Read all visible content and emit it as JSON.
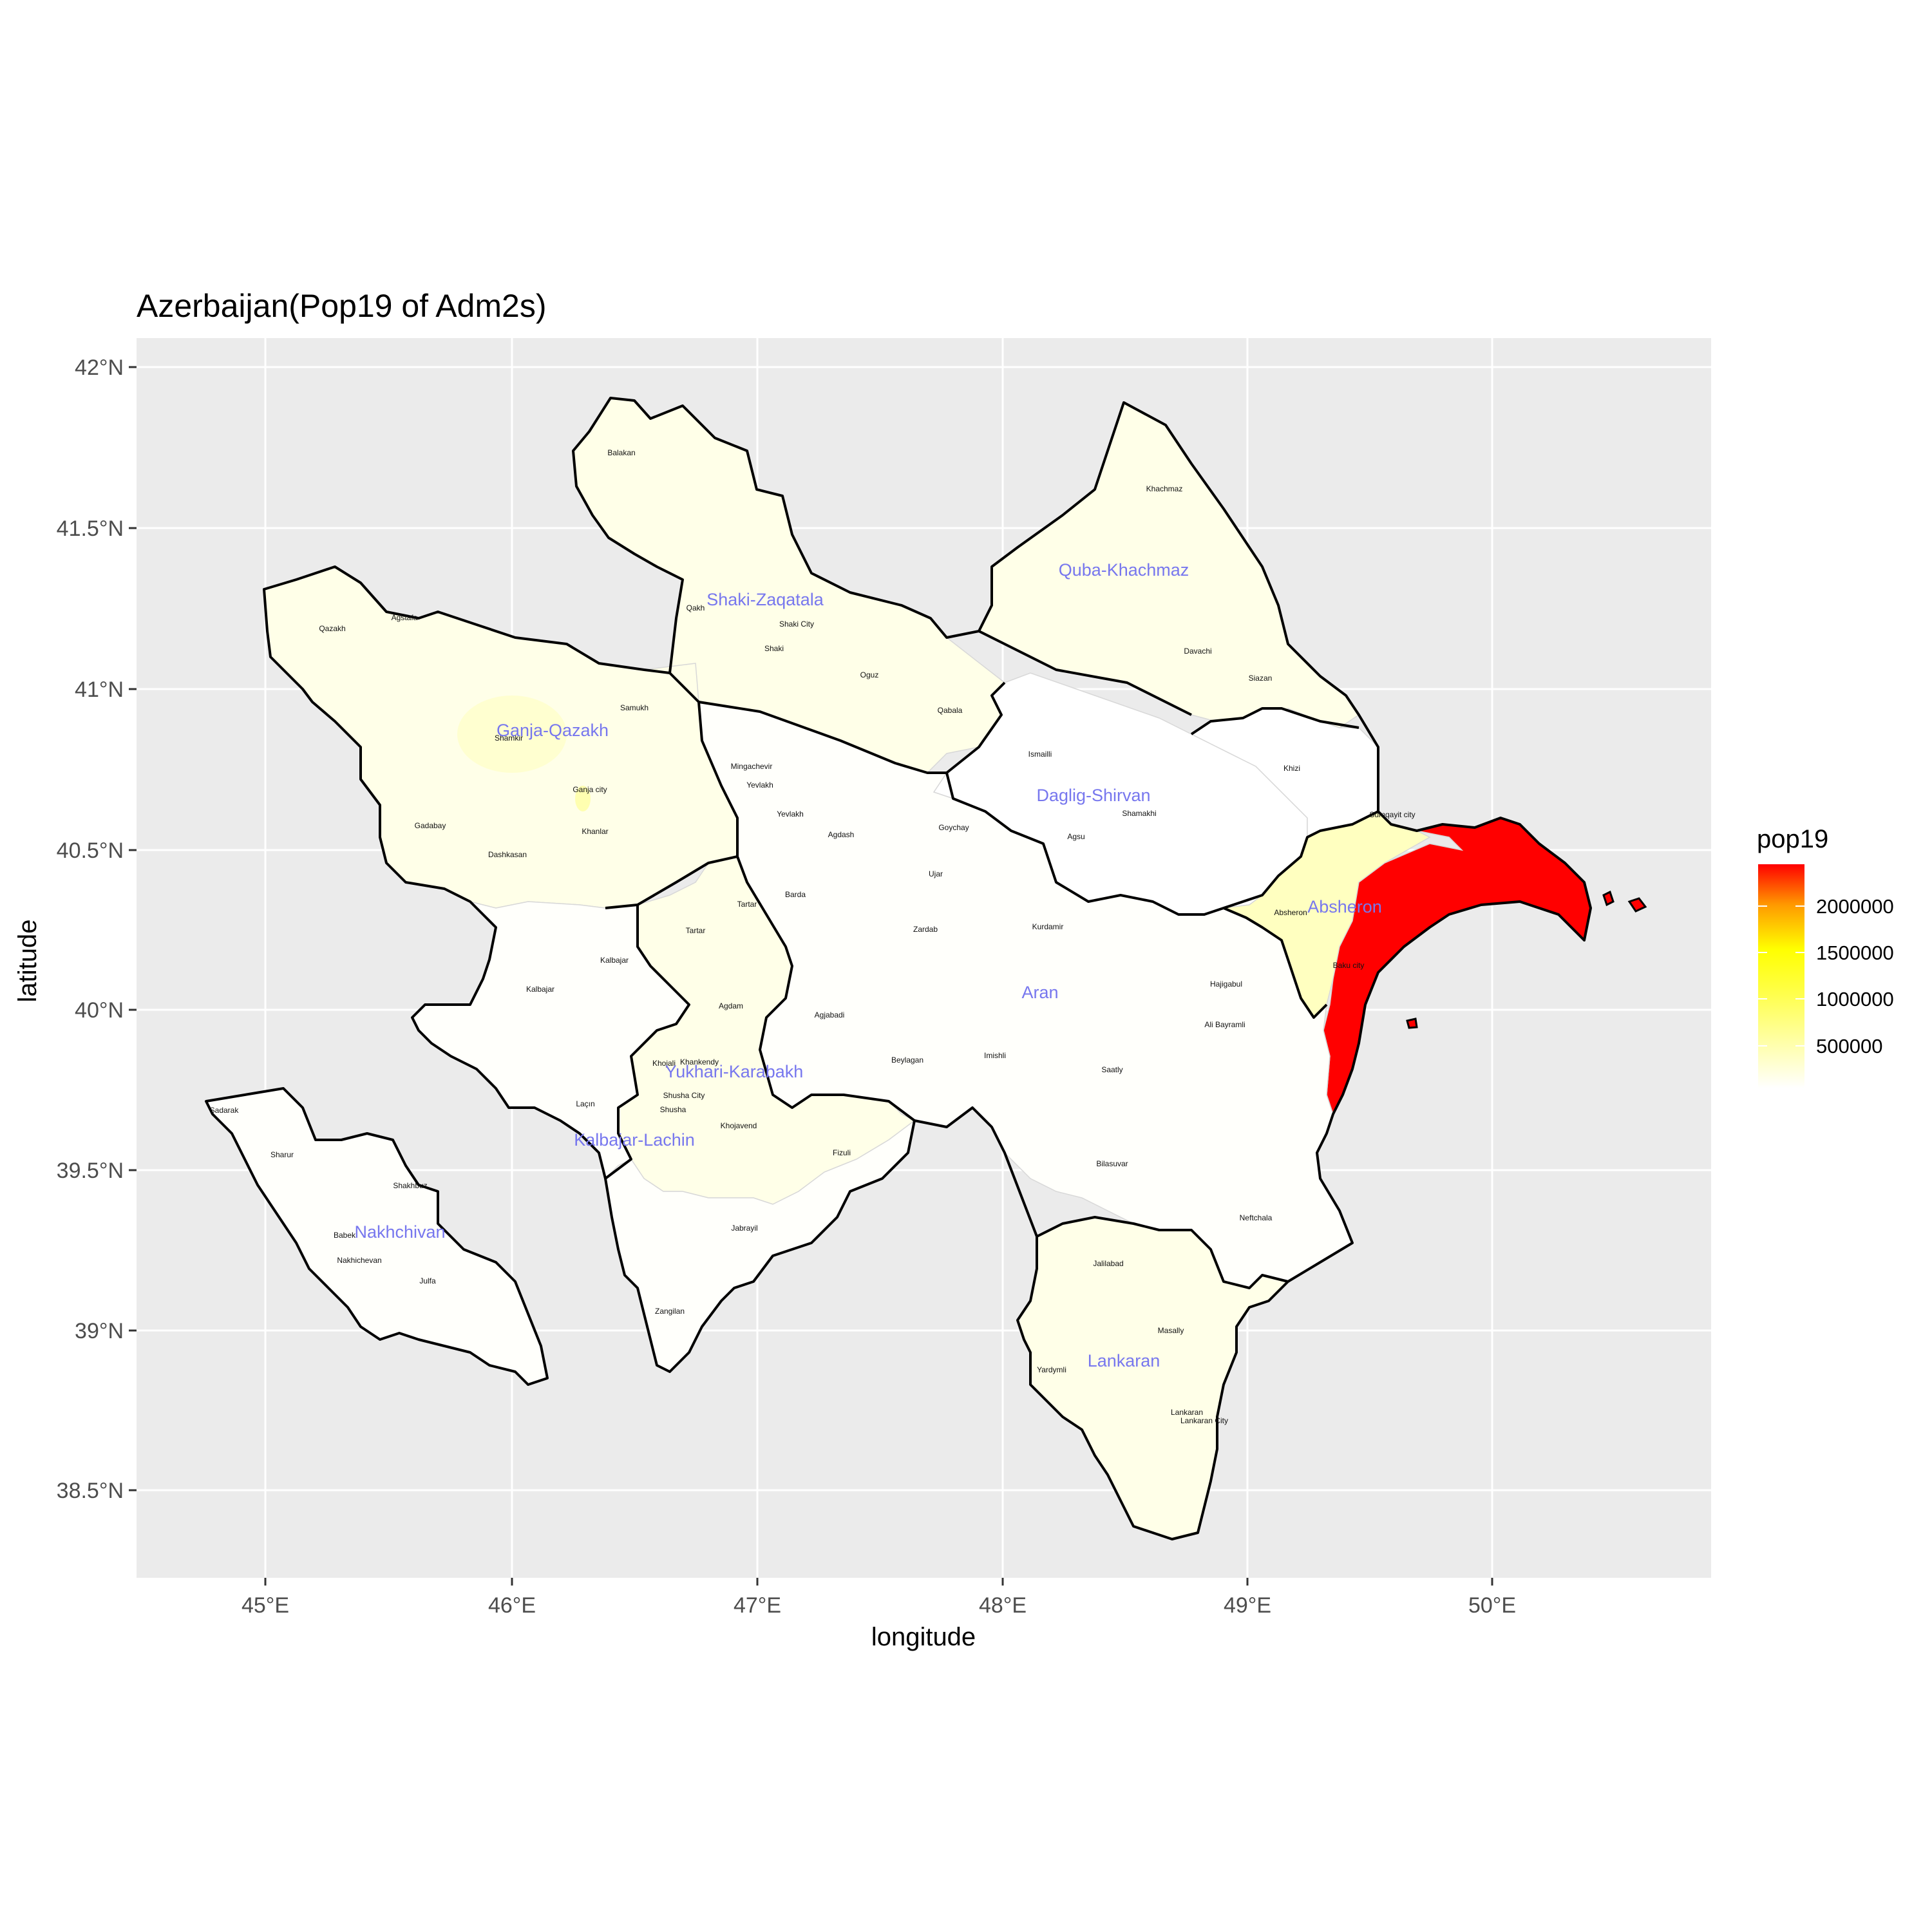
{
  "title": "Azerbaijan(Pop19 of Adm2s)",
  "axes": {
    "xlabel": "longitude",
    "ylabel": "latitude",
    "x_ticks": [
      "45°E",
      "46°E",
      "47°E",
      "48°E",
      "49°E",
      "50°E"
    ],
    "y_ticks": [
      "42°N",
      "41.5°N",
      "41°N",
      "40.5°N",
      "40°N",
      "39.5°N",
      "39°N",
      "38.5°N"
    ]
  },
  "legend": {
    "title": "pop19",
    "labels": [
      "2000000",
      "1500000",
      "1000000",
      "500000"
    ],
    "colors": {
      "low": "#ffffff",
      "mid": "#ffff00",
      "high": "#ff0000"
    }
  },
  "colors": {
    "panel_background": "#ebebeb",
    "grid": "#ffffff",
    "adm1_label": "#7777ee",
    "outline": "#000000",
    "baku": "#ff0000",
    "absheron": "#ffffc0",
    "light_yellow": "#ffffe8",
    "near_white": "#fffffb"
  },
  "adm1_labels": [
    "Shaki-Zaqatala",
    "Quba-Khachmaz",
    "Ganja-Qazakh",
    "Daglig-Shirvan",
    "Absheron",
    "Aran",
    "Yukhari-Karabakh",
    "Kalbajar-Lachin",
    "Nakhchivan",
    "Lankaran"
  ],
  "adm2_labels": [
    "Balakan",
    "Qakh",
    "Shaki City",
    "Shaki",
    "Oguz",
    "Qabala",
    "Khachmaz",
    "Davachi",
    "Siazan",
    "Qazakh",
    "Agstafa",
    "Samukh",
    "Shamkir",
    "Ganja city",
    "Gadabay",
    "Dashkasan",
    "Khanlar",
    "Mingachevir",
    "Yevlakh",
    "Yevlakh",
    "Agdash",
    "Goychay",
    "Ismailli",
    "Shamakhi",
    "Agsu",
    "Khizi",
    "Sumqayit city",
    "Absheron",
    "Baku city",
    "Barda",
    "Tartar",
    "Tartar",
    "Ujar",
    "Zardab",
    "Kurdamir",
    "Kalbajar",
    "Kalbajar",
    "Agdam",
    "Agjabadi",
    "Hajigabul",
    "Ali Bayramli",
    "Beylagan",
    "Imishli",
    "Saatly",
    "Khojali",
    "Khankendy",
    "Shusha City",
    "Shusha",
    "Khojavend",
    "Fizuli",
    "Laçın",
    "Sadarak",
    "Sharur",
    "Shakhbuz",
    "Babek",
    "Nakhichevan",
    "Julfa",
    "Jabrayil",
    "Zangilan",
    "Bilasuvar",
    "Neftchala",
    "Jalilabad",
    "Masally",
    "Yardymli",
    "Lankaran",
    "Lankaran City"
  ]
}
